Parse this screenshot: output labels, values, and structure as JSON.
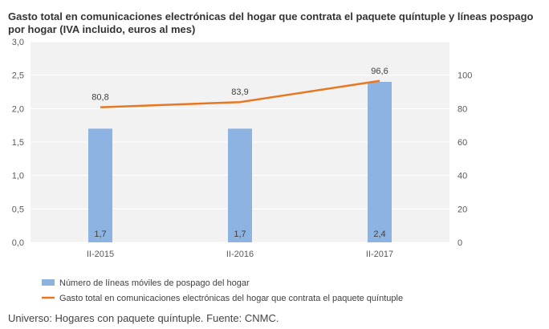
{
  "title": "Gasto total en comunicaciones electrónicas del hogar que contrata el paquete quíntuple y líneas pospago por hogar (IVA incluido, euros al mes)",
  "footer": "Universo: Hogares con paquete quíntuple. Fuente: CNMC.",
  "chart_data": {
    "type": "bar",
    "categories": [
      "II-2015",
      "II-2016",
      "II-2017"
    ],
    "grid": true,
    "legend_position": "bottom-left",
    "series": [
      {
        "name": "Número de líneas móviles de pospago del hogar",
        "type": "bar",
        "axis": "left",
        "values": [
          1.7,
          1.7,
          2.4
        ],
        "labels": [
          "1,7",
          "1,7",
          "2,4"
        ],
        "color": "#8db3e2"
      },
      {
        "name": "Gasto total en comunicaciones electrónicas del hogar que contrata el paquete quíntuple",
        "type": "line",
        "axis": "right",
        "values": [
          80.8,
          83.9,
          96.6
        ],
        "labels": [
          "80,8",
          "83,9",
          "96,6"
        ],
        "color": "#e87722"
      }
    ],
    "y_left": {
      "ylim": [
        0,
        3.0
      ],
      "ticks": [
        0,
        0.5,
        1.0,
        1.5,
        2.0,
        2.5,
        3.0
      ],
      "tick_labels": [
        "0,0",
        "0,5",
        "1,0",
        "1,5",
        "2,0",
        "2,5",
        "3,0"
      ]
    },
    "y_right": {
      "ylim": [
        0,
        120
      ],
      "ticks": [
        0,
        20,
        40,
        60,
        80,
        100
      ],
      "tick_labels": [
        "0",
        "20",
        "40",
        "60",
        "80",
        "100"
      ]
    },
    "colors": {
      "plot_background": "#f2f2f2",
      "gridline": "#ffffff",
      "axis_text": "#595959",
      "label_text": "#404040"
    }
  }
}
